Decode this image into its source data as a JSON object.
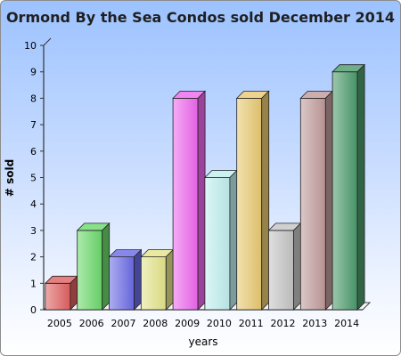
{
  "chart_data": {
    "type": "bar",
    "title": "Ormond By the Sea Condos sold December 2014",
    "xlabel": "years",
    "ylabel": "# sold",
    "categories": [
      "2005",
      "2006",
      "2007",
      "2008",
      "2009",
      "2010",
      "2011",
      "2012",
      "2013",
      "2014"
    ],
    "values": [
      1,
      3,
      2,
      2,
      8,
      5,
      8,
      3,
      8,
      9
    ],
    "ylim": [
      0,
      10
    ],
    "yticks": [
      "0",
      "1",
      "2",
      "3",
      "4",
      "5",
      "6",
      "7",
      "8",
      "9",
      "10"
    ],
    "grid": false,
    "legend": "none",
    "bar_colors": [
      "#e06060",
      "#6ad86a",
      "#6a6ae6",
      "#e4e48a",
      "#ee66ee",
      "#bfeeee",
      "#e8c870",
      "#c4c4c4",
      "#c09a9a",
      "#4a9a6a"
    ]
  }
}
